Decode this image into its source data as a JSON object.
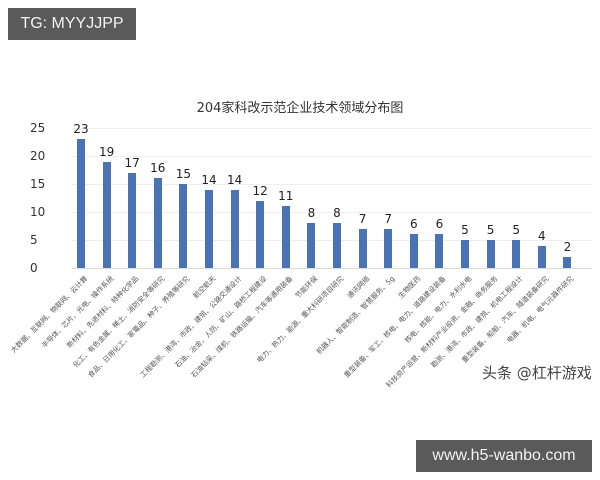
{
  "badges": {
    "top_left": "TG: MYYJJPP",
    "bottom_right": "www.h5-wanbo.com"
  },
  "watermark": "头条 @杠杆游戏",
  "chart_data": {
    "type": "bar",
    "title": "204家科改示范企业技术领域分布图",
    "xlabel": "",
    "ylabel": "",
    "ylim": [
      0,
      25
    ],
    "yticks": [
      0,
      5,
      10,
      15,
      20,
      25
    ],
    "grid": true,
    "legend": null,
    "categories": [
      "大数据、互联网、物联网、云计算",
      "半导体、芯片、光电、操作系统",
      "新材料、先进材料、特种化学品",
      "化工、有色金属、稀土、消防安全等研究",
      "食品、日用化工、家電品、种子、养殖等研究",
      "航空航天",
      "工程勘测、港湾、市政、建筑、公路交通设计",
      "石油、冶金、人防、矿山、路桥工程建设",
      "石油钻采、煤机、铁路运输、汽车等通用装备",
      "节能环保",
      "电力、热力、能源、重大科研项目研究",
      "通讯网络",
      "机器人、智能制造、智慧服务、5g",
      "生物医药",
      "重型装备、军工、核电、电力、道路建设装备",
      "核电、核能、电力、水利水电",
      "科技资产运营、新材料产业投资、金融、商务服务",
      "勘测、港湾、市政、建筑、机电工程设计",
      "重型装备、船舶、汽车、隧道装备研究",
      "电器、机电、电气元器件研究"
    ],
    "values": [
      23,
      19,
      17,
      16,
      15,
      14,
      14,
      12,
      11,
      8,
      8,
      7,
      7,
      6,
      6,
      5,
      5,
      5,
      4,
      2
    ]
  }
}
